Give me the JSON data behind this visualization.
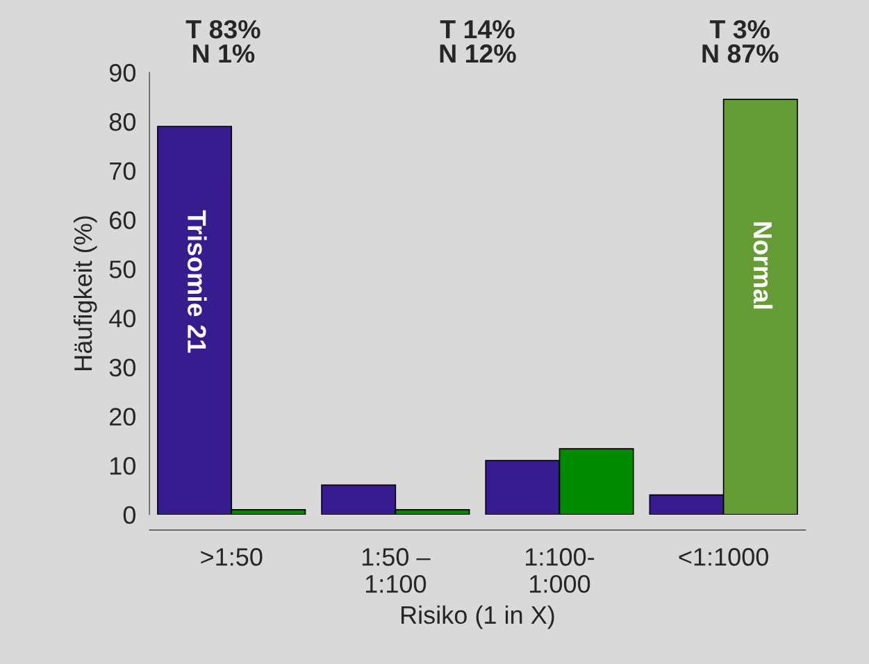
{
  "chart_data": {
    "type": "bar",
    "xlabel": "Risiko (1 in X)",
    "ylabel": "Häufigkeit (%)",
    "categories": [
      ">1:50",
      "1:50 –\n1:100",
      "1:100-\n1:000",
      "<1:1000"
    ],
    "series": [
      {
        "name": "Trisomie 21",
        "color": "#371c8f",
        "values": [
          79,
          6,
          11,
          4
        ]
      },
      {
        "name": "Normal",
        "colors": [
          "#008a00",
          "#008a00",
          "#008a00",
          "#669c35"
        ],
        "values": [
          1,
          1,
          13.4,
          84.5
        ]
      }
    ],
    "ylim": [
      0,
      90
    ],
    "yticks": [
      0,
      10,
      20,
      30,
      40,
      50,
      60,
      70,
      80,
      90
    ],
    "annotations": [
      "T 83%\nN 1%",
      "T 14%\nN 12%",
      "T 3%\nN 87%"
    ],
    "grid": false,
    "legend": false
  }
}
